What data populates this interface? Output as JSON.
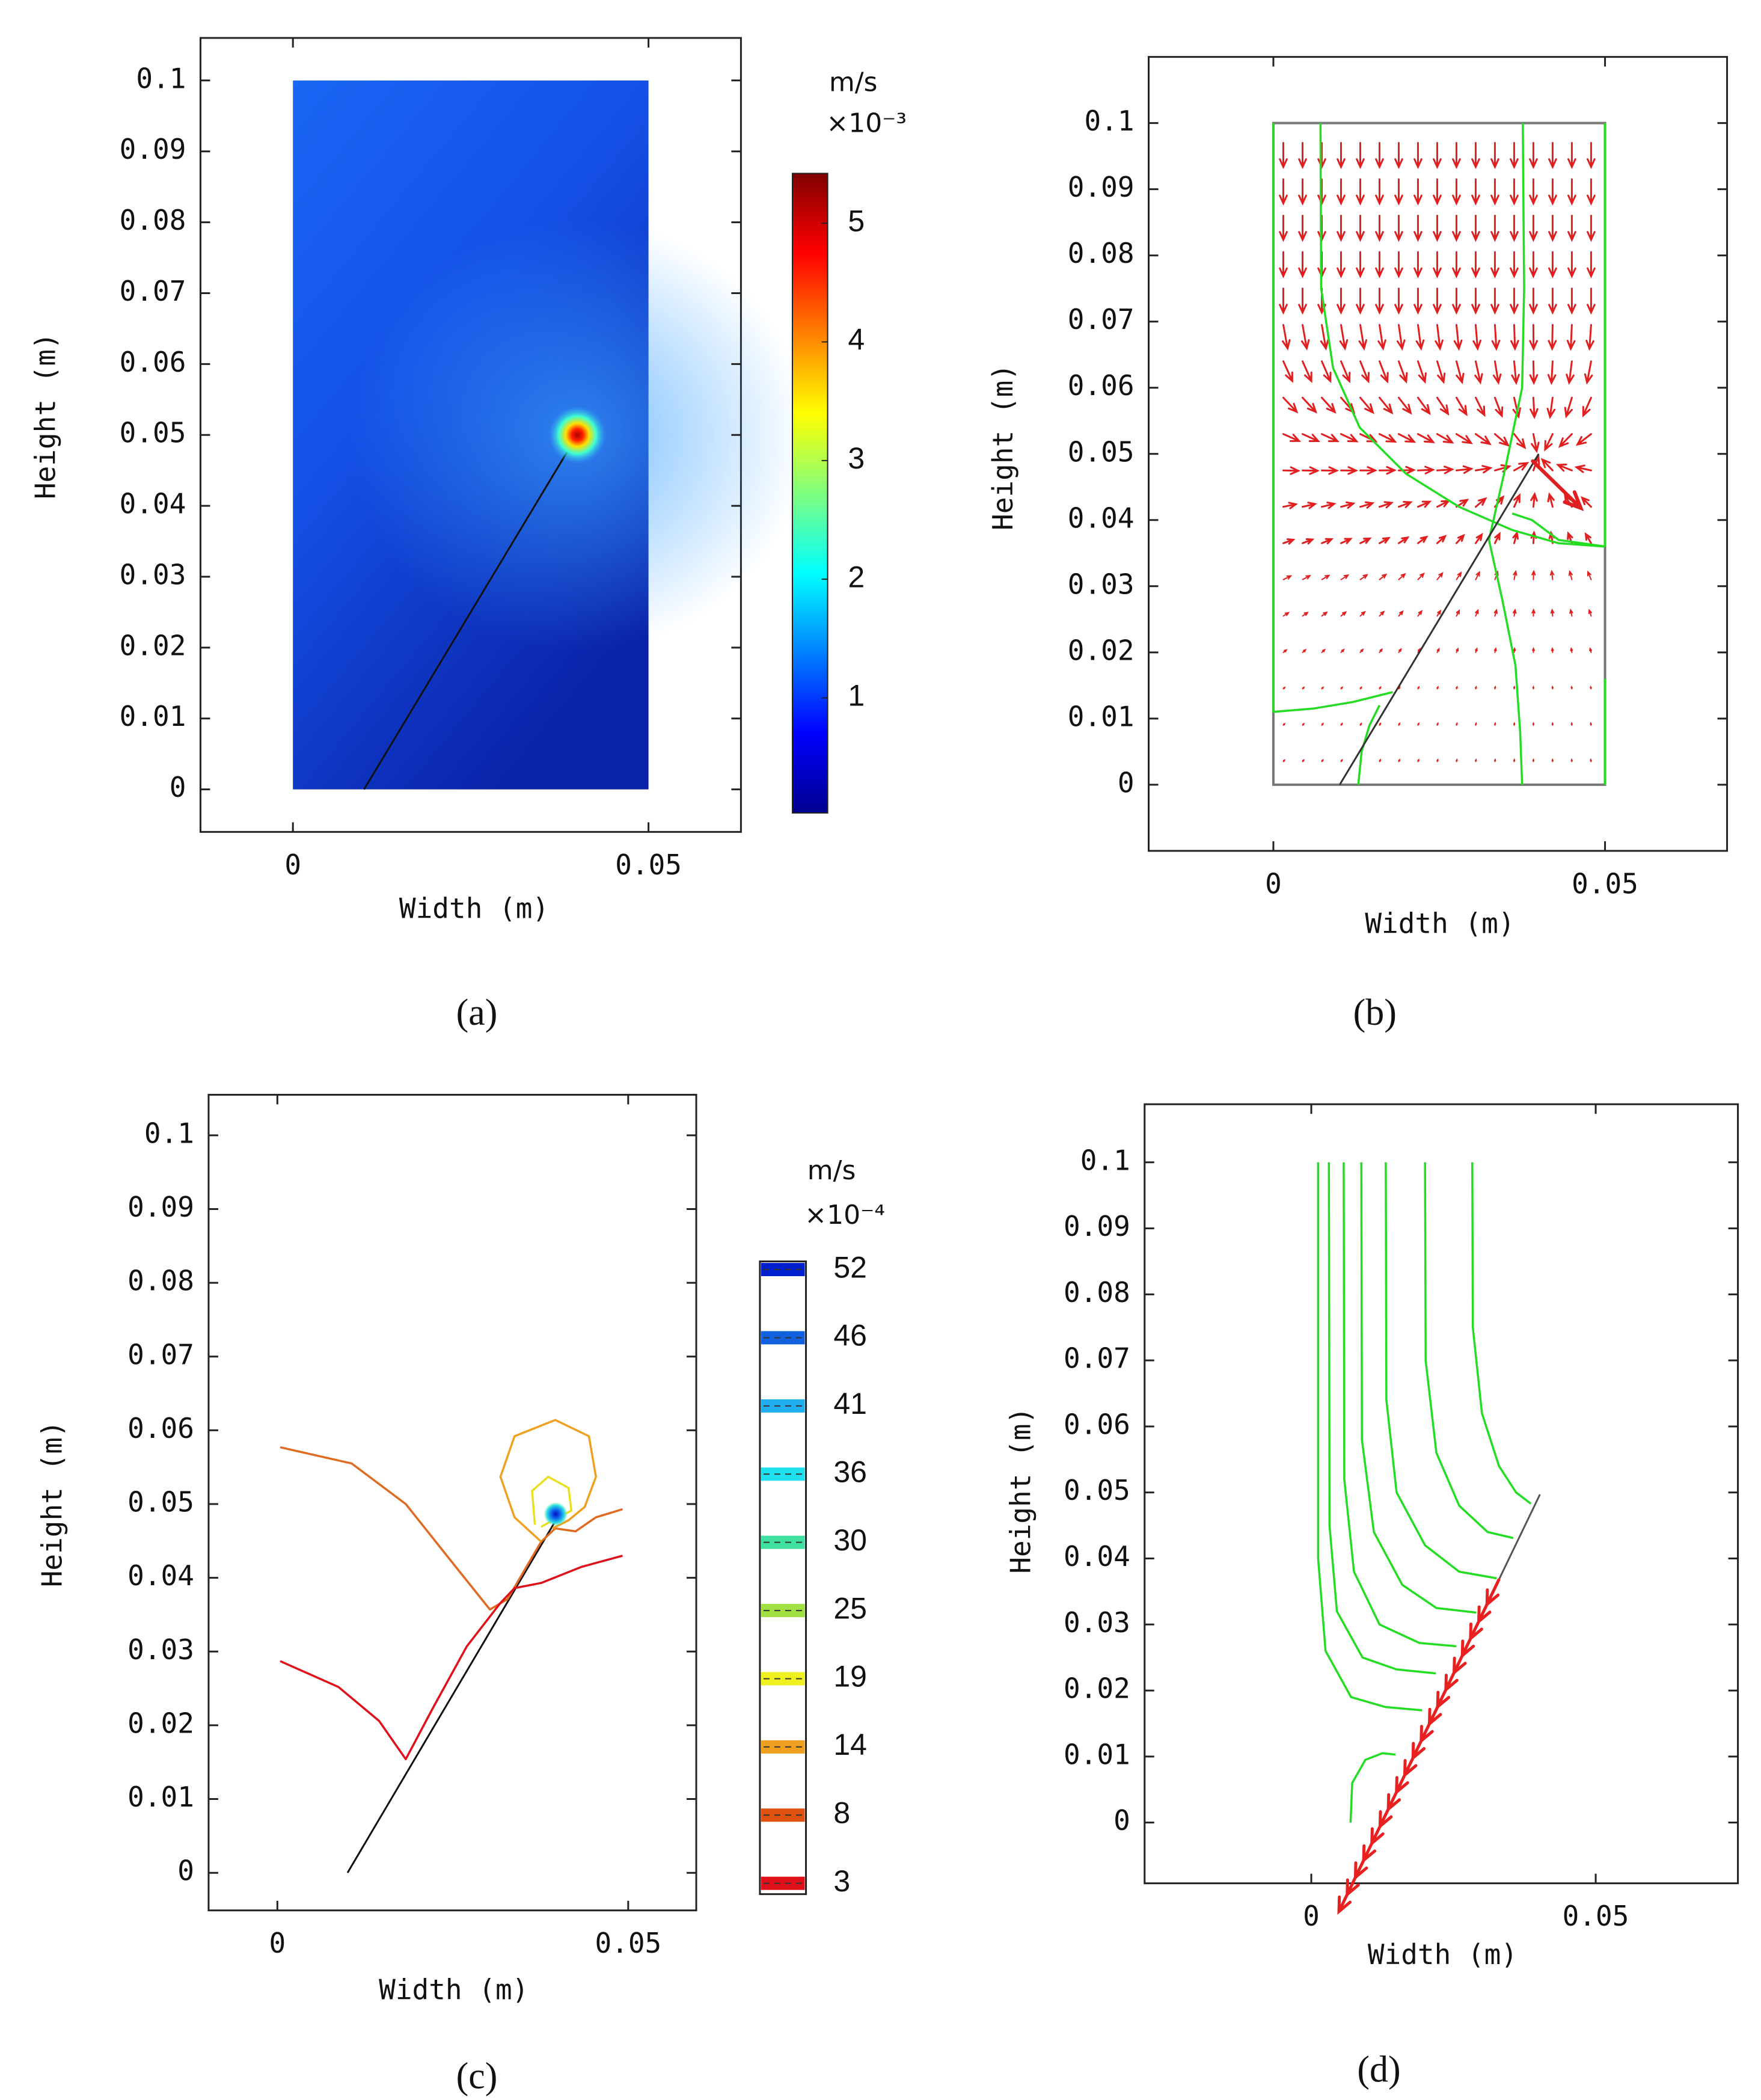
{
  "chart_data": [
    {
      "type": "heatmap",
      "label": "(a)",
      "xlabel": "Width (m)",
      "ylabel": "Height (m)",
      "xlim": [
        -0.013,
        0.063
      ],
      "ylim": [
        -0.006,
        0.106
      ],
      "xticks": [
        0,
        0.05
      ],
      "yticks": [
        0,
        0.01,
        0.02,
        0.03,
        0.04,
        0.05,
        0.06,
        0.07,
        0.08,
        0.09,
        0.1
      ],
      "domain": {
        "x": [
          0,
          0.05
        ],
        "y": [
          0,
          0.1
        ]
      },
      "crack": {
        "x": [
          0.01,
          0.04
        ],
        "y": [
          0,
          0.05
        ]
      },
      "colormap": "jet",
      "colorbar_unit": "m/s",
      "colorbar_scale": "×10⁻³",
      "clim": [
        0.03,
        5.42
      ],
      "cticks": [
        1,
        2,
        3,
        4,
        5
      ]
    },
    {
      "type": "quiver",
      "label": "(b)",
      "xlabel": "Width (m)",
      "ylabel": "Height (m)",
      "xlim": [
        -0.0188,
        0.0684
      ],
      "ylim": [
        -0.01,
        0.11
      ],
      "xticks": [
        0,
        0.05
      ],
      "yticks": [
        0,
        0.01,
        0.02,
        0.03,
        0.04,
        0.05,
        0.06,
        0.07,
        0.08,
        0.09,
        0.1
      ],
      "domain": {
        "x": [
          0,
          0.05
        ],
        "y": [
          0,
          0.1
        ]
      },
      "crack": {
        "x": [
          0.01,
          0.04
        ],
        "y": [
          0,
          0.05
        ]
      },
      "arrow_color": "#e02020",
      "streamline_color": "#22dd22",
      "streamlines": [
        {
          "x": [
            0,
            0
          ],
          "y": [
            0.1,
            0.011
          ]
        },
        {
          "x": [
            0,
            0.006,
            0.012,
            0.018
          ],
          "y": [
            0.011,
            0.0115,
            0.0125,
            0.014
          ]
        },
        {
          "x": [
            0.0071,
            0.0072,
            0.009,
            0.013,
            0.02,
            0.028,
            0.036,
            0.043,
            0.05
          ],
          "y": [
            0.1,
            0.075,
            0.063,
            0.054,
            0.047,
            0.042,
            0.0385,
            0.0365,
            0.036
          ]
        },
        {
          "x": [
            0.0376,
            0.0378,
            0.0375,
            0.035,
            0.0325,
            0.0345,
            0.0365,
            0.0372,
            0.0375
          ],
          "y": [
            0.1,
            0.075,
            0.06,
            0.048,
            0.037,
            0.028,
            0.018,
            0.008,
            0
          ]
        },
        {
          "x": [
            0.05,
            0.05
          ],
          "y": [
            0.1,
            0.036
          ]
        },
        {
          "x": [
            0.05,
            0.05
          ],
          "y": [
            0.016,
            0
          ]
        },
        {
          "x": [
            0.0128,
            0.0133,
            0.0145,
            0.016
          ],
          "y": [
            0,
            0.005,
            0.009,
            0.012
          ]
        },
        {
          "x": [
            0.036,
            0.039,
            0.043,
            0.05
          ],
          "y": [
            0.041,
            0.04,
            0.037,
            0.036
          ]
        }
      ]
    },
    {
      "type": "contour",
      "label": "(c)",
      "xlabel": "Width (m)",
      "ylabel": "Height (m)",
      "xlim": [
        -0.0098,
        0.0597
      ],
      "ylim": [
        -0.0051,
        0.1055
      ],
      "xticks": [
        0,
        0.05
      ],
      "yticks": [
        0,
        0.01,
        0.02,
        0.03,
        0.04,
        0.05,
        0.06,
        0.07,
        0.08,
        0.09,
        0.1
      ],
      "crack": {
        "x": [
          0.01,
          0.0395
        ],
        "y": [
          0,
          0.0475
        ]
      },
      "colorbar_unit": "m/s",
      "colorbar_scale": "×10⁻⁴",
      "levels": [
        3,
        8,
        14,
        19,
        25,
        30,
        36,
        41,
        46,
        52
      ],
      "level_colors": [
        "#e0101a",
        "#e05010",
        "#f0a020",
        "#f0f020",
        "#a0e040",
        "#40e0a0",
        "#20e0f0",
        "#20b0f0",
        "#1060e0",
        "#0020d0"
      ],
      "contours": [
        {
          "color": "#e06a20",
          "x": [
            0.0004,
            0.0106,
            0.0183,
            0.026,
            0.0303,
            0.0328,
            0.0376,
            0.0396,
            0.0425,
            0.0454,
            0.0492
          ],
          "y": [
            0.0577,
            0.0555,
            0.05,
            0.0408,
            0.0357,
            0.0371,
            0.0449,
            0.0467,
            0.0463,
            0.0482,
            0.0493
          ]
        },
        {
          "color": "#e0101a",
          "x": [
            0.0004,
            0.0087,
            0.0145,
            0.0183,
            0.0222,
            0.027,
            0.0318,
            0.0338,
            0.0376,
            0.0434,
            0.0492
          ],
          "y": [
            0.0287,
            0.0252,
            0.0206,
            0.0154,
            0.0224,
            0.0307,
            0.0366,
            0.0386,
            0.0393,
            0.0415,
            0.043
          ]
        },
        {
          "color": "#f0a020",
          "x": [
            0.0376,
            0.0338,
            0.0318,
            0.0338,
            0.0396,
            0.0444,
            0.0454,
            0.0438,
            0.0415,
            0.0392
          ],
          "y": [
            0.0449,
            0.0482,
            0.0537,
            0.0592,
            0.0614,
            0.0592,
            0.0537,
            0.0496,
            0.0478,
            0.0467
          ]
        },
        {
          "color": "#e8e020",
          "x": [
            0.0367,
            0.0363,
            0.0386,
            0.0415,
            0.0419,
            0.04,
            0.0376
          ],
          "y": [
            0.0472,
            0.0518,
            0.0537,
            0.0522,
            0.0491,
            0.0482,
            0.0469
          ]
        }
      ]
    },
    {
      "type": "streamline",
      "label": "(d)",
      "xlabel": "Width (m)",
      "ylabel": "Height (m)",
      "xlim": [
        -0.0293,
        0.075
      ],
      "ylim": [
        -0.0092,
        0.1088
      ],
      "xticks": [
        0,
        0.05
      ],
      "yticks": [
        0,
        0.01,
        0.02,
        0.03,
        0.04,
        0.05,
        0.06,
        0.07,
        0.08,
        0.09,
        0.1
      ],
      "crack": {
        "x": [
          0.0124,
          0.0402
        ],
        "y": [
          0,
          0.0497
        ]
      },
      "arrow_color": "#e82020",
      "streamline_color": "#22dd22",
      "streamlines": [
        {
          "x": [
            0.0012,
            0.0012,
            0.0025,
            0.007,
            0.013,
            0.0195
          ],
          "y": [
            0.1,
            0.04,
            0.026,
            0.019,
            0.0175,
            0.017
          ]
        },
        {
          "x": [
            0.0031,
            0.0032,
            0.0045,
            0.009,
            0.015,
            0.0219
          ],
          "y": [
            0.1,
            0.045,
            0.032,
            0.025,
            0.0232,
            0.0226
          ]
        },
        {
          "x": [
            0.0057,
            0.0058,
            0.0075,
            0.012,
            0.019,
            0.0255
          ],
          "y": [
            0.1,
            0.052,
            0.038,
            0.03,
            0.0272,
            0.0267
          ]
        },
        {
          "x": [
            0.0088,
            0.0089,
            0.011,
            0.016,
            0.022,
            0.029
          ],
          "y": [
            0.1,
            0.058,
            0.044,
            0.036,
            0.0325,
            0.0318
          ]
        },
        {
          "x": [
            0.0131,
            0.0132,
            0.015,
            0.02,
            0.026,
            0.0326
          ],
          "y": [
            0.1,
            0.064,
            0.05,
            0.042,
            0.038,
            0.037
          ]
        },
        {
          "x": [
            0.02,
            0.0201,
            0.022,
            0.026,
            0.031,
            0.0355
          ],
          "y": [
            0.1,
            0.07,
            0.056,
            0.048,
            0.044,
            0.0431
          ]
        },
        {
          "x": [
            0.0283,
            0.0284,
            0.03,
            0.033,
            0.036,
            0.0386
          ],
          "y": [
            0.1,
            0.075,
            0.062,
            0.054,
            0.05,
            0.0483
          ]
        },
        {
          "x": [
            0.0069,
            0.0072,
            0.0095,
            0.0125,
            0.0148
          ],
          "y": [
            0,
            0.006,
            0.0095,
            0.0105,
            0.0103
          ]
        }
      ]
    }
  ]
}
